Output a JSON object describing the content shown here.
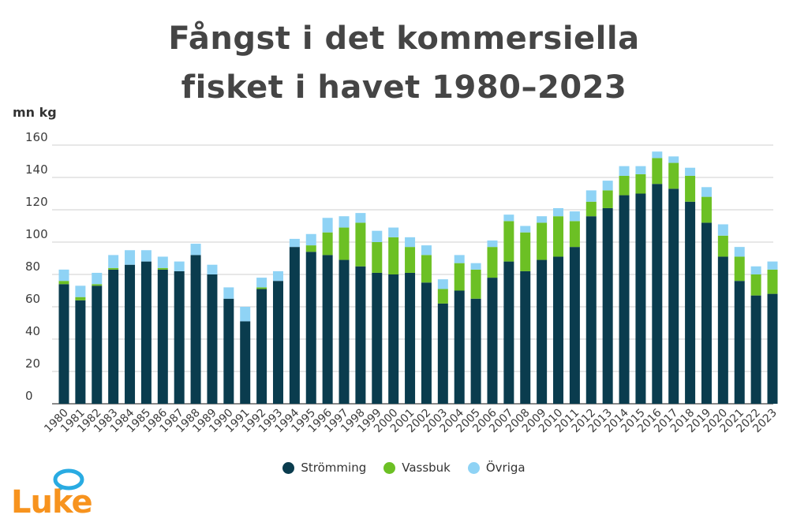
{
  "title_line1": "Fångst i det kommersiella",
  "title_line2": "fisket i havet 1980–2023",
  "unit_label": "mn kg",
  "logo_text": "Luke",
  "colors": {
    "stromming": "#0a3c4e",
    "vassbuk": "#6cc024",
    "ovriga": "#8fd3f5",
    "grid": "#cfcfcf",
    "logo_orange": "#f7931e",
    "logo_blue": "#29abe2"
  },
  "chart_data": {
    "type": "bar",
    "stacked": true,
    "title": "Fångst i det kommersiella fisket i havet 1980–2023",
    "ylabel": "mn kg",
    "ylim": [
      0,
      160
    ],
    "yticks": [
      0,
      20,
      40,
      60,
      80,
      100,
      120,
      140,
      160
    ],
    "grid": true,
    "legend_position": "bottom",
    "categories": [
      "1980",
      "1981",
      "1982",
      "1983",
      "1984",
      "1985",
      "1986",
      "1987",
      "1988",
      "1989",
      "1990",
      "1991",
      "1992",
      "1993",
      "1994",
      "1995",
      "1996",
      "1997",
      "1998",
      "1999",
      "2000",
      "2001",
      "2002",
      "2003",
      "2004",
      "2005",
      "2006",
      "2007",
      "2008",
      "2009",
      "2010",
      "2011",
      "2012",
      "2013",
      "2014",
      "2015",
      "2016",
      "2017",
      "2018",
      "2019",
      "2020",
      "2021",
      "2022",
      "2023"
    ],
    "series": [
      {
        "name": "Strömming",
        "color": "#0a3c4e",
        "values": [
          74,
          64,
          73,
          83,
          86,
          88,
          83,
          82,
          92,
          80,
          65,
          51,
          71,
          76,
          97,
          94,
          92,
          89,
          85,
          81,
          80,
          81,
          75,
          62,
          70,
          65,
          78,
          88,
          82,
          89,
          91,
          97,
          116,
          121,
          129,
          130,
          136,
          133,
          125,
          112,
          91,
          76,
          67,
          68
        ]
      },
      {
        "name": "Vassbuk",
        "color": "#6cc024",
        "values": [
          2,
          2,
          1,
          1,
          0,
          0,
          1,
          0,
          0,
          0,
          0,
          0,
          1,
          0,
          0,
          4,
          14,
          20,
          27,
          19,
          23,
          16,
          17,
          9,
          17,
          18,
          19,
          25,
          24,
          23,
          25,
          16,
          9,
          11,
          12,
          12,
          16,
          16,
          16,
          16,
          13,
          15,
          13,
          15
        ]
      },
      {
        "name": "Övriga",
        "color": "#8fd3f5",
        "values": [
          7,
          7,
          7,
          8,
          9,
          7,
          7,
          6,
          7,
          6,
          7,
          9,
          6,
          6,
          5,
          7,
          9,
          7,
          6,
          7,
          6,
          6,
          6,
          6,
          5,
          4,
          4,
          4,
          4,
          4,
          5,
          6,
          7,
          6,
          6,
          5,
          4,
          4,
          5,
          6,
          7,
          6,
          5,
          5
        ]
      }
    ]
  }
}
